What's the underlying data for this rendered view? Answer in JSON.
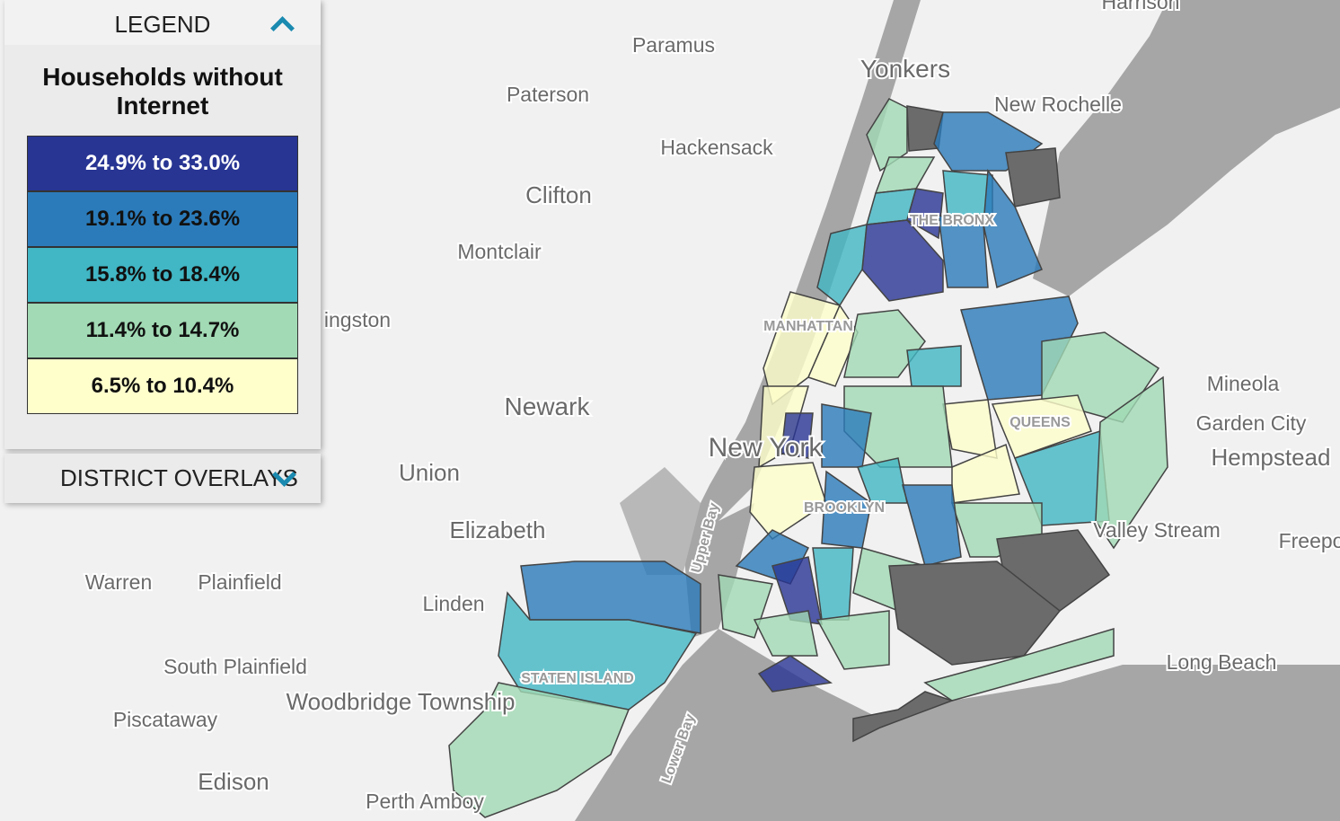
{
  "legend": {
    "header": "LEGEND",
    "title": "Households without Internet",
    "items": [
      {
        "label": "24.9% to 33.0%",
        "color": "#283593"
      },
      {
        "label": "19.1% to 23.6%",
        "color": "#2b7bba"
      },
      {
        "label": "15.8% to 18.4%",
        "color": "#41b6c4"
      },
      {
        "label": "11.4% to 14.7%",
        "color": "#a1dab4"
      },
      {
        "label": "6.5% to 10.4%",
        "color": "#ffffcc"
      }
    ],
    "overlays": "DISTRICT OVERLAYS"
  },
  "map": {
    "places": [
      "Harrison",
      "Paramus",
      "Yonkers",
      "Paterson",
      "New Rochelle",
      "Hackensack",
      "Clifton",
      "Montclair",
      "THE BRONX",
      "MANHATTAN",
      "ingston",
      "Mineola",
      "Garden City",
      "Hempstead",
      "Newark",
      "New York",
      "QUEENS",
      "Union",
      "BROOKLYN",
      "Valley Stream",
      "Freepo",
      "Elizabeth",
      "Warren",
      "Plainfield",
      "Linden",
      "Upper Bay",
      "South Plainfield",
      "STATEN ISLAND",
      "Long Beach",
      "Woodbridge Township",
      "Piscataway",
      "Lower Bay",
      "Edison",
      "Perth Amboy"
    ]
  }
}
